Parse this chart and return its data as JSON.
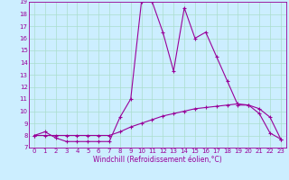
{
  "xlabel": "Windchill (Refroidissement éolien,°C)",
  "line1_x": [
    0,
    1,
    2,
    3,
    4,
    5,
    6,
    7,
    8,
    9,
    10,
    11,
    12,
    13,
    14,
    15,
    16,
    17,
    18,
    19,
    20,
    21,
    22,
    23
  ],
  "line1_y": [
    8,
    8.3,
    7.8,
    7.5,
    7.5,
    7.5,
    7.5,
    7.5,
    9.5,
    11,
    19,
    19,
    16.5,
    13.3,
    18.5,
    16,
    16.5,
    14.5,
    12.5,
    10.5,
    10.5,
    9.8,
    8.2,
    7.7
  ],
  "line2_x": [
    0,
    1,
    2,
    3,
    4,
    5,
    6,
    7,
    8,
    9,
    10,
    11,
    12,
    13,
    14,
    15,
    16,
    17,
    18,
    19,
    20,
    21,
    22,
    23
  ],
  "line2_y": [
    8,
    8,
    8,
    8,
    8,
    8,
    8,
    8,
    8.3,
    8.7,
    9.0,
    9.3,
    9.6,
    9.8,
    10.0,
    10.2,
    10.3,
    10.4,
    10.5,
    10.6,
    10.5,
    10.2,
    9.5,
    7.7
  ],
  "line_color": "#990099",
  "bg_color": "#cceeff",
  "grid_color": "#aaddcc",
  "xlim": [
    -0.5,
    23.5
  ],
  "ylim": [
    7,
    19
  ],
  "yticks": [
    7,
    8,
    9,
    10,
    11,
    12,
    13,
    14,
    15,
    16,
    17,
    18,
    19
  ],
  "xticks": [
    0,
    1,
    2,
    3,
    4,
    5,
    6,
    7,
    8,
    9,
    10,
    11,
    12,
    13,
    14,
    15,
    16,
    17,
    18,
    19,
    20,
    21,
    22,
    23
  ],
  "marker": "+",
  "markersize": 3,
  "linewidth": 0.8,
  "tick_fontsize": 5,
  "xlabel_fontsize": 5.5
}
